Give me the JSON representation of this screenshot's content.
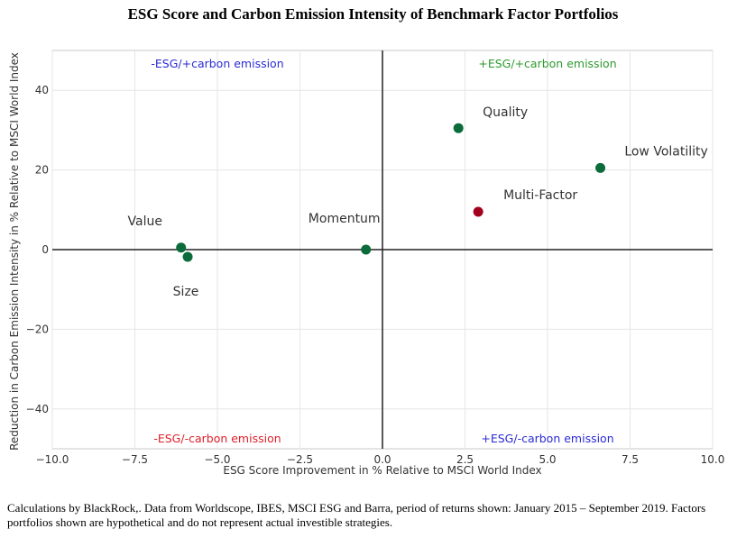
{
  "title": "ESG Score and Carbon Emission Intensity of Benchmark Factor Portfolios",
  "caption": "Calculations by BlackRock,. Data from Worldscope, IBES, MSCI ESG and Barra, period of returns shown: January 2015 – September 2019. Factors portfolios shown are hypothetical and do not represent actual investible strategies.",
  "chart_data": {
    "type": "scatter",
    "xlabel": "ESG Score Improvement in % Relative to MSCI World Index",
    "ylabel": "Reduction in Carbon Emission Intensity in % Relative to MSCI World Index",
    "xlim": [
      -10,
      10
    ],
    "ylim": [
      -50,
      50
    ],
    "xticks": [
      -10.0,
      -7.5,
      -5.0,
      -2.5,
      0.0,
      2.5,
      5.0,
      7.5,
      10.0
    ],
    "xtick_labels": [
      "−10.0",
      "−7.5",
      "−5.0",
      "−2.5",
      "0.0",
      "2.5",
      "5.0",
      "7.5",
      "10.0"
    ],
    "yticks": [
      40,
      20,
      0,
      -20,
      -40
    ],
    "ytick_labels": [
      "40",
      "20",
      "0",
      "−20",
      "−40"
    ],
    "points": [
      {
        "name": "Value",
        "x": -6.1,
        "y": 0.5,
        "color": "#0b6b3a"
      },
      {
        "name": "Size",
        "x": -5.9,
        "y": -1.8,
        "color": "#0b6b3a"
      },
      {
        "name": "Momentum",
        "x": -0.5,
        "y": 0.0,
        "color": "#0b6b3a"
      },
      {
        "name": "Quality",
        "x": 2.3,
        "y": 30.5,
        "color": "#0b6b3a"
      },
      {
        "name": "Low Volatility",
        "x": 6.6,
        "y": 20.5,
        "color": "#0b6b3a"
      },
      {
        "name": "Multi-Factor",
        "x": 2.9,
        "y": 9.5,
        "color": "#a3001f"
      }
    ],
    "quadrant_labels": [
      {
        "text": "-ESG/+carbon emission",
        "position": "top-left",
        "color": "#2b2bd6"
      },
      {
        "text": "+ESG/+carbon emission",
        "position": "top-right",
        "color": "#2e9a2e"
      },
      {
        "text": "-ESG/-carbon emission",
        "position": "bottom-left",
        "color": "#e0202a"
      },
      {
        "text": "+ESG/-carbon emission",
        "position": "bottom-right",
        "color": "#2b2bd6"
      }
    ]
  }
}
